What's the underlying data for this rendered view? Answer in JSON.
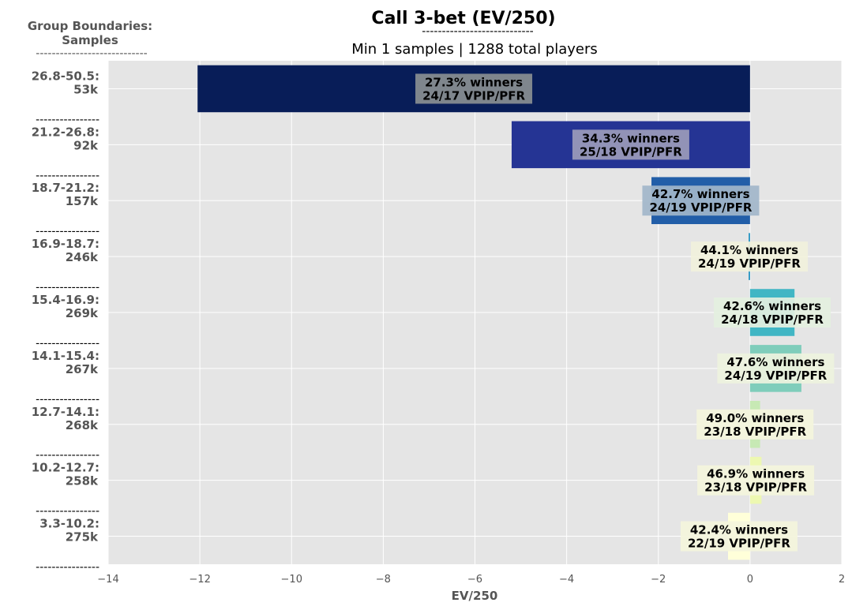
{
  "chart_data": {
    "type": "bar",
    "orientation": "horizontal",
    "title": "Call 3-bet (EV/250)",
    "title_underline": "----------------------------",
    "subtitle": "Min 1 samples | 1288 total players",
    "group_header": [
      "Group Boundaries:",
      "Samples"
    ],
    "group_header_rule": "----------------------------",
    "row_separator": "----------------",
    "xlabel": "EV/250",
    "xlim": [
      -14,
      2
    ],
    "xticks": [
      -14,
      -12,
      -10,
      -8,
      -6,
      -4,
      -2,
      0,
      2
    ],
    "xtick_labels": [
      "−14",
      "−12",
      "−10",
      "−8",
      "−6",
      "−4",
      "−2",
      "0",
      "2"
    ],
    "grid": true,
    "bars": [
      {
        "range": "26.8-50.5:",
        "samples": "53k",
        "value": -12.05,
        "color": "#081d58",
        "winners": "27.3% winners",
        "vpip": "24/17 VPIP/PFR",
        "label_box": "#8a8f91"
      },
      {
        "range": "21.2-26.8:",
        "samples": "92k",
        "value": -5.2,
        "color": "#253494",
        "winners": "34.3% winners",
        "vpip": "25/18 VPIP/PFR",
        "label_box": "#9b9bba"
      },
      {
        "range": "18.7-21.2:",
        "samples": "157k",
        "value": -2.15,
        "color": "#225ea8",
        "winners": "42.7% winners",
        "vpip": "24/19 VPIP/PFR",
        "label_box": "#a2b6ca"
      },
      {
        "range": "16.9-18.7:",
        "samples": "246k",
        "value": -0.03,
        "color": "#1d91c0",
        "winners": "44.1% winners",
        "vpip": "24/19 VPIP/PFR",
        "label_box": "#f1f1dc"
      },
      {
        "range": "15.4-16.9:",
        "samples": "269k",
        "value": 0.97,
        "color": "#41b6c4",
        "winners": "42.6% winners",
        "vpip": "24/18 VPIP/PFR",
        "label_box": "#e4f0e0"
      },
      {
        "range": "14.1-15.4:",
        "samples": "267k",
        "value": 1.12,
        "color": "#7fcdbb",
        "winners": "47.6% winners",
        "vpip": "24/19 VPIP/PFR",
        "label_box": "#eef3de"
      },
      {
        "range": "12.7-14.1:",
        "samples": "268k",
        "value": 0.22,
        "color": "#c7e9b4",
        "winners": "49.0% winners",
        "vpip": "23/18 VPIP/PFR",
        "label_box": "#f4f5dc"
      },
      {
        "range": "10.2-12.7:",
        "samples": "258k",
        "value": 0.25,
        "color": "#edf8b1",
        "winners": "46.9% winners",
        "vpip": "23/18 VPIP/PFR",
        "label_box": "#f4f5dc"
      },
      {
        "range": "3.3-10.2:",
        "samples": "275k",
        "value": -0.48,
        "color": "#ffffd9",
        "winners": "42.4% winners",
        "vpip": "22/19 VPIP/PFR",
        "label_box": "#f4f5dc"
      }
    ],
    "colors": {
      "plot_bg": "#e5e5e5",
      "grid": "#ffffff"
    }
  }
}
